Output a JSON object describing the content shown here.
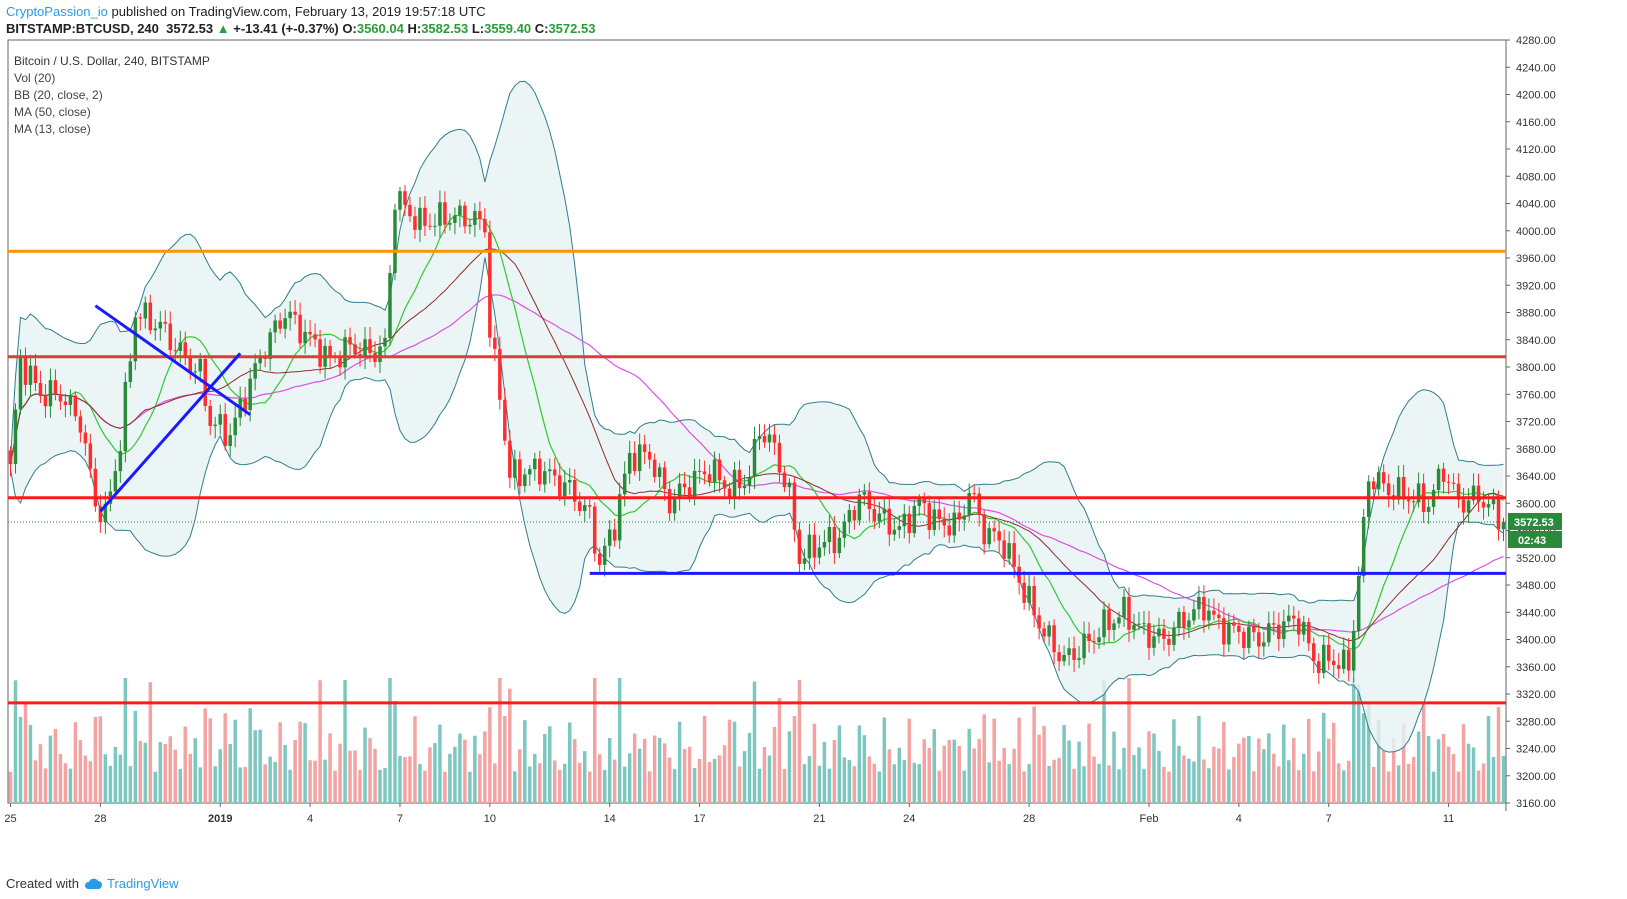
{
  "header": {
    "author": "CryptoPassion_io",
    "published": " published on TradingView.com, February 13, 2019 19:57:18 UTC"
  },
  "quote": {
    "symbol": "BITSTAMP:BTCUSD, 240",
    "last": "3572.53",
    "change": "+-13.41 (+-0.37%)",
    "o_label": "O:",
    "o": "3560.04",
    "h_label": "H:",
    "h": "3582.53",
    "l_label": "L:",
    "l": "3559.40",
    "c_label": "C:",
    "c": "3572.53"
  },
  "legend": {
    "title": "Bitcoin / U.S. Dollar, 240, BITSTAMP",
    "items": [
      "Vol (20)",
      "BB (20, close, 2)",
      "MA (50, close)",
      "MA (13, close)"
    ]
  },
  "footer": {
    "created_with": "Created with",
    "brand": "TradingView"
  },
  "chart_data": {
    "type": "candlestick",
    "symbol": "BTCUSD",
    "exchange": "BITSTAMP",
    "interval": "240",
    "ylim": [
      3160,
      4280
    ],
    "y_ticks": [
      "4280.00",
      "4240.00",
      "4200.00",
      "4160.00",
      "4120.00",
      "4080.00",
      "4040.00",
      "4000.00",
      "3960.00",
      "3920.00",
      "3880.00",
      "3840.00",
      "3800.00",
      "3760.00",
      "3720.00",
      "3680.00",
      "3640.00",
      "3600.00",
      "3560.00",
      "3520.00",
      "3480.00",
      "3440.00",
      "3400.00",
      "3360.00",
      "3320.00",
      "3280.00",
      "3240.00",
      "3200.00",
      "3160.00"
    ],
    "x_ticks": [
      {
        "label": "25",
        "bar": 0
      },
      {
        "label": "28",
        "bar": 18
      },
      {
        "label": "2019",
        "bar": 42
      },
      {
        "label": "4",
        "bar": 60
      },
      {
        "label": "7",
        "bar": 78
      },
      {
        "label": "10",
        "bar": 96
      },
      {
        "label": "14",
        "bar": 120
      },
      {
        "label": "17",
        "bar": 138
      },
      {
        "label": "21",
        "bar": 162
      },
      {
        "label": "24",
        "bar": 180
      },
      {
        "label": "28",
        "bar": 204
      },
      {
        "label": "Feb",
        "bar": 228
      },
      {
        "label": "4",
        "bar": 246
      },
      {
        "label": "7",
        "bar": 264
      },
      {
        "label": "11",
        "bar": 288
      }
    ],
    "last_price": "3572.53",
    "countdown": "02:43",
    "colors": {
      "up": "#2a8a3a",
      "down": "#ff2d2d",
      "bb": "#2f7d8f",
      "bb_fill": "#e6f3f3",
      "ma50": "#e14fe1",
      "ma13_a": "#32c832",
      "ma13_b": "#8c2d2d",
      "vol_up": "#7cc8c0",
      "vol_down": "#f4a3a3"
    },
    "keypoints": [
      [
        0,
        3650
      ],
      [
        2,
        3810
      ],
      [
        6,
        3760
      ],
      [
        10,
        3760
      ],
      [
        14,
        3720
      ],
      [
        17,
        3600
      ],
      [
        19,
        3580
      ],
      [
        22,
        3690
      ],
      [
        25,
        3880
      ],
      [
        30,
        3860
      ],
      [
        34,
        3820
      ],
      [
        38,
        3790
      ],
      [
        40,
        3720
      ],
      [
        44,
        3700
      ],
      [
        47,
        3760
      ],
      [
        51,
        3830
      ],
      [
        55,
        3880
      ],
      [
        60,
        3840
      ],
      [
        64,
        3810
      ],
      [
        68,
        3830
      ],
      [
        72,
        3820
      ],
      [
        75,
        3830
      ],
      [
        77,
        4050
      ],
      [
        82,
        4010
      ],
      [
        87,
        4020
      ],
      [
        91,
        4020
      ],
      [
        95,
        4010
      ],
      [
        96,
        3850
      ],
      [
        98,
        3760
      ],
      [
        100,
        3640
      ],
      [
        106,
        3650
      ],
      [
        112,
        3620
      ],
      [
        116,
        3580
      ],
      [
        118,
        3510
      ],
      [
        121,
        3570
      ],
      [
        124,
        3670
      ],
      [
        128,
        3670
      ],
      [
        132,
        3600
      ],
      [
        136,
        3630
      ],
      [
        140,
        3650
      ],
      [
        144,
        3620
      ],
      [
        148,
        3640
      ],
      [
        150,
        3710
      ],
      [
        153,
        3680
      ],
      [
        156,
        3610
      ],
      [
        158,
        3520
      ],
      [
        162,
        3540
      ],
      [
        166,
        3550
      ],
      [
        170,
        3610
      ],
      [
        174,
        3580
      ],
      [
        178,
        3560
      ],
      [
        182,
        3600
      ],
      [
        186,
        3570
      ],
      [
        190,
        3570
      ],
      [
        192,
        3620
      ],
      [
        195,
        3560
      ],
      [
        199,
        3540
      ],
      [
        203,
        3470
      ],
      [
        207,
        3410
      ],
      [
        211,
        3370
      ],
      [
        215,
        3390
      ],
      [
        219,
        3420
      ],
      [
        223,
        3440
      ],
      [
        227,
        3410
      ],
      [
        231,
        3400
      ],
      [
        235,
        3430
      ],
      [
        239,
        3450
      ],
      [
        242,
        3420
      ],
      [
        246,
        3410
      ],
      [
        250,
        3400
      ],
      [
        254,
        3420
      ],
      [
        258,
        3430
      ],
      [
        261,
        3370
      ],
      [
        265,
        3370
      ],
      [
        268,
        3360
      ],
      [
        270,
        3490
      ],
      [
        272,
        3640
      ],
      [
        276,
        3620
      ],
      [
        280,
        3610
      ],
      [
        284,
        3600
      ],
      [
        287,
        3650
      ],
      [
        290,
        3600
      ],
      [
        294,
        3610
      ],
      [
        297,
        3590
      ],
      [
        299,
        3572.53
      ]
    ],
    "horizontal_levels": [
      {
        "price": 3970,
        "color": "#ff9500",
        "x_from_bar": 0
      },
      {
        "price": 3815,
        "color": "#d84030",
        "x_from_bar": 0
      },
      {
        "price": 3608,
        "color": "#ff1a1a",
        "x_from_bar": 0
      },
      {
        "price": 3497,
        "color": "#1a1aff",
        "x_from_bar": 116
      },
      {
        "price": 3307,
        "color": "#ff1a1a",
        "x_from_bar": 0
      }
    ],
    "trendlines": [
      {
        "color": "#1a1aff",
        "from": [
          17,
          3890
        ],
        "to": [
          48,
          3730
        ]
      },
      {
        "color": "#1a1aff",
        "from": [
          18,
          3588
        ],
        "to": [
          46,
          3820
        ]
      }
    ]
  }
}
